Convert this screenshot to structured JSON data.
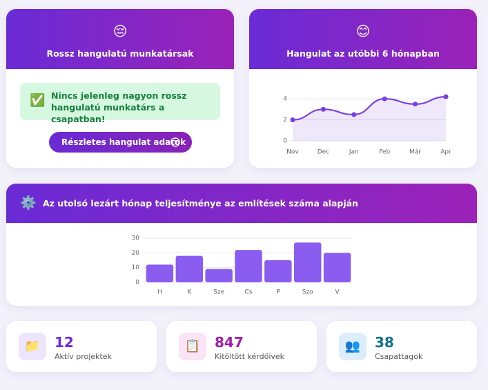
{
  "mood_card": {
    "icon": "😔",
    "title": "Rossz hangulatú munkatársak",
    "notice_icon": "✅",
    "notice": "Nincs jelenleg nagyon rossz hangulatú munkatárs a csapatban!",
    "button": "Részletes hangulat adatok"
  },
  "chart_data": [
    {
      "type": "line",
      "icon": "😊",
      "title": "Hangulat az utóbbi 6 hónapban",
      "categories": [
        "Nov",
        "Dec",
        "Jan",
        "Feb",
        "Már",
        "Ápr"
      ],
      "values": [
        2,
        3,
        2.5,
        4,
        3.5,
        4.2
      ],
      "color": "#7b3fe0",
      "ylim": [
        0,
        5
      ],
      "yticks": [
        0,
        2,
        4
      ],
      "grid": true
    },
    {
      "type": "bar",
      "icon": "⚙️",
      "title": "Az utolsó lezárt hónap teljesítménye az említések száma alapján",
      "categories": [
        "H",
        "K",
        "Sze",
        "Cs",
        "P",
        "Szo",
        "V"
      ],
      "values": [
        12,
        18,
        9,
        22,
        15,
        27,
        20
      ],
      "color": "#8b5cf0",
      "ylim": [
        0,
        30
      ],
      "yticks": [
        0,
        10,
        20,
        30
      ],
      "grid": true
    }
  ],
  "stats": [
    {
      "icon": "📁",
      "value": 12,
      "label": "Aktív projektek"
    },
    {
      "icon": "📋",
      "value": 847,
      "label": "Kitöltött kérdőívek"
    },
    {
      "icon": "👥",
      "value": 38,
      "label": "Csapattagok"
    }
  ]
}
